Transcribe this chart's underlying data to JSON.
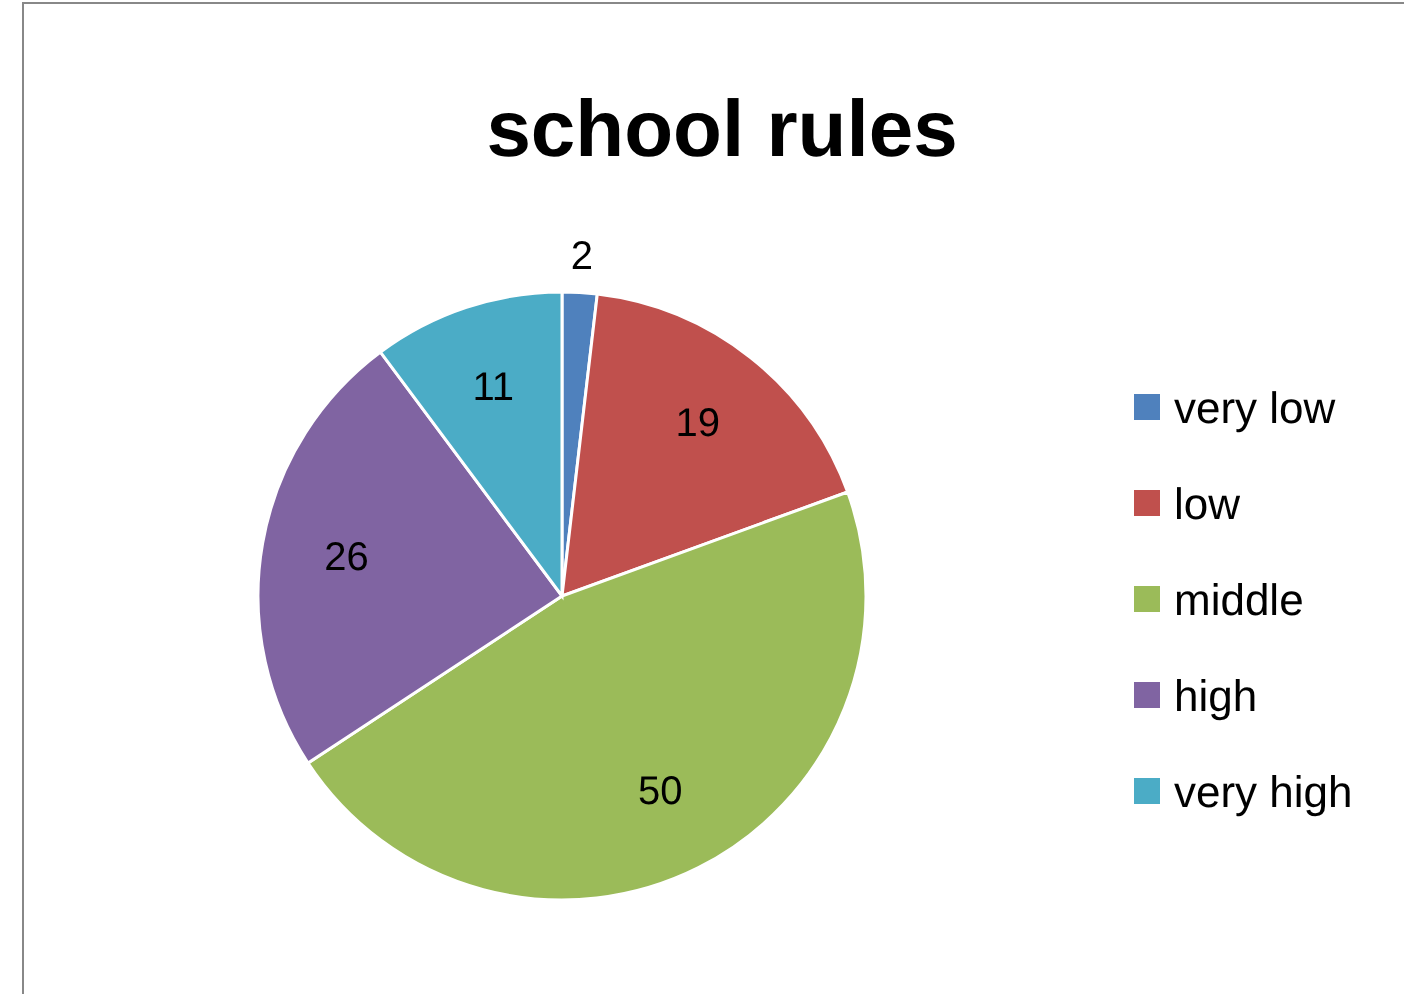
{
  "chart_data": {
    "type": "pie",
    "title": "school rules",
    "categories": [
      "very low",
      "low",
      "middle",
      "high",
      "very high"
    ],
    "values": [
      2,
      19,
      50,
      26,
      11
    ],
    "colors": [
      "#4f81bd",
      "#c0504d",
      "#9bbb59",
      "#8064a2",
      "#4bacc6"
    ],
    "data_labels": true,
    "legend": "right"
  }
}
